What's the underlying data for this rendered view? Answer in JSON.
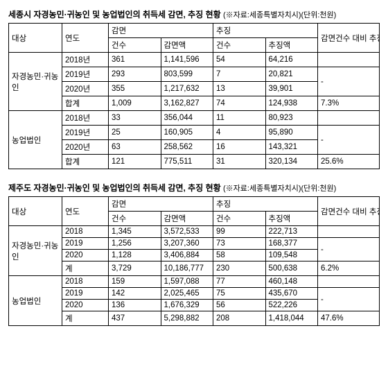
{
  "tables": [
    {
      "title": "세종시 자경농민·귀농인 및 농업법인의 취득세 감면, 추징 현황",
      "note": "(※자료:세종특별자치시)(단위:천원)",
      "headers": {
        "target": "대상",
        "year": "연도",
        "reduction": "감면",
        "collection": "추징",
        "ratio": "감면건수 대비 추징건수",
        "count": "건수",
        "reductionAmt": "감면액",
        "collectionAmt": "추징액"
      },
      "groups": [
        {
          "name": "자경농민·귀농인",
          "rows": [
            {
              "year": "2018년",
              "rc": "361",
              "ra": "1,141,596",
              "cc": "54",
              "ca": "64,216",
              "ratio": ""
            },
            {
              "year": "2019년",
              "rc": "293",
              "ra": "803,599",
              "cc": "7",
              "ca": "20,821",
              "ratio": "-"
            },
            {
              "year": "2020년",
              "rc": "355",
              "ra": "1,217,632",
              "cc": "13",
              "ca": "39,901",
              "ratio": ""
            },
            {
              "year": "합계",
              "rc": "1,009",
              "ra": "3,162,827",
              "cc": "74",
              "ca": "124,938",
              "ratio": "7.3%"
            }
          ]
        },
        {
          "name": "농업법인",
          "rows": [
            {
              "year": "2018년",
              "rc": "33",
              "ra": "356,044",
              "cc": "11",
              "ca": "80,923",
              "ratio": ""
            },
            {
              "year": "2019년",
              "rc": "25",
              "ra": "160,905",
              "cc": "4",
              "ca": "95,890",
              "ratio": "-"
            },
            {
              "year": "2020년",
              "rc": "63",
              "ra": "258,562",
              "cc": "16",
              "ca": "143,321",
              "ratio": ""
            },
            {
              "year": "합계",
              "rc": "121",
              "ra": "775,511",
              "cc": "31",
              "ca": "320,134",
              "ratio": "25.6%"
            }
          ]
        }
      ]
    },
    {
      "title": "제주도 자경농민·귀농인 및 농업법인의 취득세 감면, 추징 현황",
      "note": "(※자료:세종특별자치시)(단위:천원)",
      "headers": {
        "target": "대상",
        "year": "연도",
        "reduction": "감면",
        "collection": "추징",
        "ratio": "감면건수 대비 추징건수",
        "count": "건수",
        "reductionAmt": "감면액",
        "collectionAmt": "추징액"
      },
      "groups": [
        {
          "name": "자경농민·귀농인",
          "rows": [
            {
              "year": "2018",
              "rc": "1,345",
              "ra": "3,572,533",
              "cc": "99",
              "ca": "222,713",
              "ratio": ""
            },
            {
              "year": "2019",
              "rc": "1,256",
              "ra": "3,207,360",
              "cc": "73",
              "ca": "168,377",
              "ratio": "-"
            },
            {
              "year": "2020",
              "rc": "1,128",
              "ra": "3,406,884",
              "cc": "58",
              "ca": "109,548",
              "ratio": ""
            },
            {
              "year": "계",
              "rc": "3,729",
              "ra": "10,186,777",
              "cc": "230",
              "ca": "500,638",
              "ratio": "6.2%"
            }
          ]
        },
        {
          "name": "농업법인",
          "rows": [
            {
              "year": "2018",
              "rc": "159",
              "ra": "1,597,088",
              "cc": "77",
              "ca": "460,148",
              "ratio": ""
            },
            {
              "year": "2019",
              "rc": "142",
              "ra": "2,025,465",
              "cc": "75",
              "ca": "435,670",
              "ratio": "-"
            },
            {
              "year": "2020",
              "rc": "136",
              "ra": "1,676,329",
              "cc": "56",
              "ca": "522,226",
              "ratio": ""
            },
            {
              "year": "계",
              "rc": "437",
              "ra": "5,298,882",
              "cc": "208",
              "ca": "1,418,044",
              "ratio": "47.6%"
            }
          ]
        }
      ]
    }
  ]
}
